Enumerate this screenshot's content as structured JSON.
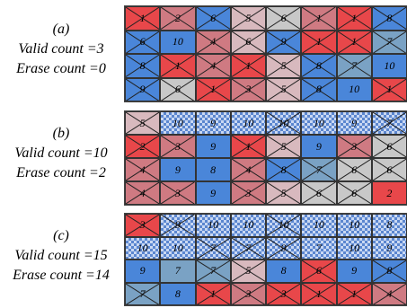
{
  "colors": {
    "R": "#e8474a",
    "r": "#cf7a82",
    "p": "#d8b9be",
    "g": "#c8c8c8",
    "B": "#4a86d9",
    "t": "#7aa2c4",
    "k": "checker"
  },
  "panels": [
    {
      "label": "(a)",
      "valid": "Valid  count =3",
      "erase": "Erase count =0",
      "cells": [
        [
          [
            "R",
            "1",
            1
          ],
          [
            "r",
            "2",
            1
          ],
          [
            "B",
            "6",
            1
          ],
          [
            "p",
            "5",
            1
          ],
          [
            "g",
            "6",
            1
          ],
          [
            "r",
            "1",
            1
          ],
          [
            "R",
            "1",
            1
          ],
          [
            "B",
            "8",
            1
          ]
        ],
        [
          [
            "B",
            "6",
            1
          ],
          [
            "B",
            "10",
            0
          ],
          [
            "r",
            "4",
            1
          ],
          [
            "p",
            "6",
            1
          ],
          [
            "B",
            "9",
            1
          ],
          [
            "R",
            "1",
            1
          ],
          [
            "R",
            "1",
            1
          ],
          [
            "t",
            "7",
            1
          ]
        ],
        [
          [
            "B",
            "8",
            1
          ],
          [
            "R",
            "1",
            1
          ],
          [
            "r",
            "4",
            1
          ],
          [
            "R",
            "1",
            1
          ],
          [
            "p",
            "5",
            1
          ],
          [
            "B",
            "8",
            1
          ],
          [
            "t",
            "7",
            1
          ],
          [
            "B",
            "10",
            0
          ]
        ],
        [
          [
            "B",
            "9",
            1
          ],
          [
            "g",
            "6",
            1
          ],
          [
            "R",
            "1",
            1
          ],
          [
            "r",
            "3",
            1
          ],
          [
            "p",
            "5",
            1
          ],
          [
            "B",
            "8",
            1
          ],
          [
            "B",
            "10",
            0
          ],
          [
            "R",
            "1",
            1
          ]
        ]
      ]
    },
    {
      "label": "(b)",
      "valid": "Valid  count =10",
      "erase": "Erase count =2",
      "cells": [
        [
          [
            "p",
            "5",
            1
          ],
          [
            "k",
            "10",
            0
          ],
          [
            "k",
            "9",
            0
          ],
          [
            "k",
            "10",
            0
          ],
          [
            "k",
            "10",
            1
          ],
          [
            "k",
            "10",
            0
          ],
          [
            "k",
            "9",
            0
          ],
          [
            "k",
            "7",
            1
          ]
        ],
        [
          [
            "R",
            "2",
            1
          ],
          [
            "r",
            "3",
            1
          ],
          [
            "B",
            "9",
            0
          ],
          [
            "R",
            "1",
            1
          ],
          [
            "p",
            "5",
            1
          ],
          [
            "B",
            "9",
            0
          ],
          [
            "r",
            "3",
            1
          ],
          [
            "g",
            "6",
            1
          ]
        ],
        [
          [
            "r",
            "4",
            1
          ],
          [
            "B",
            "9",
            0
          ],
          [
            "B",
            "8",
            0
          ],
          [
            "r",
            "4",
            1
          ],
          [
            "B",
            "8",
            1
          ],
          [
            "t",
            "7",
            1
          ],
          [
            "g",
            "6",
            1
          ],
          [
            "g",
            "6",
            1
          ]
        ],
        [
          [
            "r",
            "4",
            1
          ],
          [
            "r",
            "3",
            1
          ],
          [
            "B",
            "9",
            0
          ],
          [
            "r",
            "3",
            1
          ],
          [
            "p",
            "5",
            1
          ],
          [
            "g",
            "6",
            1
          ],
          [
            "g",
            "6",
            1
          ],
          [
            "R",
            "2",
            0
          ]
        ]
      ]
    },
    {
      "label": "(c)",
      "valid": "Valid  count =15",
      "erase": "Erase count =14",
      "cells": [
        [
          [
            "R",
            "3",
            1
          ],
          [
            "k",
            "9",
            1
          ],
          [
            "k",
            "10",
            0
          ],
          [
            "k",
            "10",
            0
          ],
          [
            "k",
            "10",
            1
          ],
          [
            "k",
            "10",
            0
          ],
          [
            "k",
            "10",
            0
          ],
          [
            "k",
            "8",
            0
          ]
        ],
        [
          [
            "k",
            "10",
            0
          ],
          [
            "k",
            "10",
            0
          ],
          [
            "k",
            "7",
            1
          ],
          [
            "k",
            "7",
            1
          ],
          [
            "k",
            "9",
            1
          ],
          [
            "k",
            "7",
            0
          ],
          [
            "k",
            "10",
            0
          ],
          [
            "k",
            "9",
            0
          ]
        ],
        [
          [
            "B",
            "9",
            0
          ],
          [
            "t",
            "7",
            0
          ],
          [
            "t",
            "7",
            1
          ],
          [
            "p",
            "5",
            1
          ],
          [
            "B",
            "8",
            0
          ],
          [
            "R",
            "6",
            1
          ],
          [
            "B",
            "9",
            0
          ],
          [
            "B",
            "8",
            1
          ]
        ],
        [
          [
            "t",
            "7",
            1
          ],
          [
            "B",
            "8",
            0
          ],
          [
            "R",
            "1",
            1
          ],
          [
            "r",
            "3",
            1
          ],
          [
            "R",
            "3",
            1
          ],
          [
            "R",
            "1",
            1
          ],
          [
            "R",
            "1",
            1
          ],
          [
            "r",
            "4",
            1
          ]
        ]
      ]
    }
  ]
}
